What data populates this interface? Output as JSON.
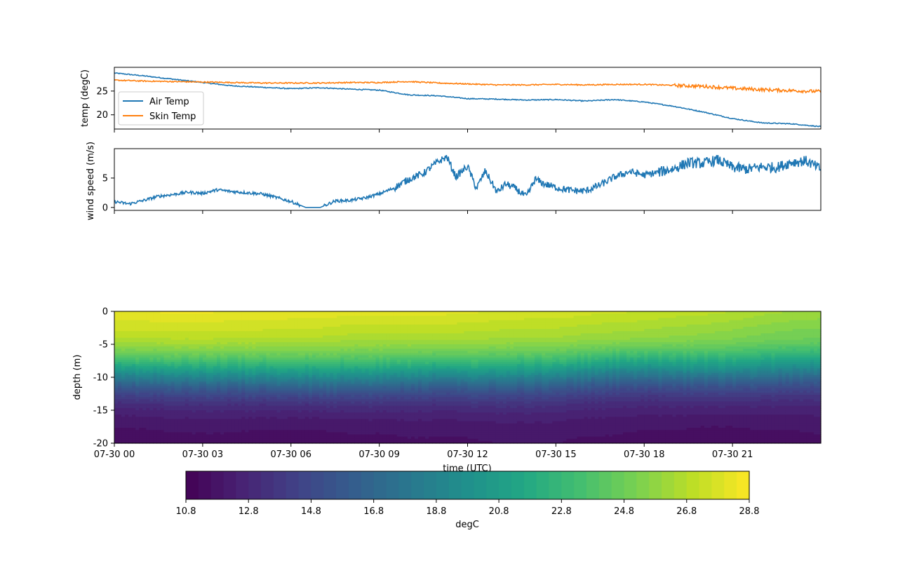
{
  "chart_data": [
    {
      "type": "line",
      "ylabel": "temp (degC)",
      "ylim": [
        17,
        30
      ],
      "x_range_hours": [
        0,
        24
      ],
      "yticks": [
        20,
        25
      ],
      "legend": {
        "placement": "lower-left"
      },
      "series": [
        {
          "name": "Air Temp",
          "color": "#1f77b4",
          "hours": [
            0,
            1,
            2,
            3,
            4,
            5,
            6,
            7,
            8,
            9,
            10,
            11,
            12,
            13,
            14,
            15,
            16,
            17,
            18,
            19,
            20,
            21,
            22,
            23,
            24
          ],
          "values": [
            28.8,
            28.2,
            27.5,
            26.8,
            26.1,
            25.8,
            25.5,
            25.7,
            25.4,
            25.2,
            24.2,
            24.0,
            23.4,
            23.3,
            23.1,
            23.2,
            22.9,
            23.2,
            22.7,
            21.8,
            20.6,
            19.2,
            18.3,
            18.1,
            17.5
          ]
        },
        {
          "name": "Skin Temp",
          "color": "#ff7f0e",
          "hours": [
            0,
            1,
            2,
            3,
            4,
            5,
            6,
            7,
            8,
            9,
            10,
            11,
            12,
            13,
            14,
            15,
            16,
            17,
            18,
            19,
            20,
            21,
            22,
            23,
            24
          ],
          "values": [
            27.3,
            27.1,
            27.0,
            26.9,
            26.8,
            26.7,
            26.7,
            26.7,
            26.8,
            26.8,
            27.0,
            26.7,
            26.5,
            26.3,
            26.3,
            26.4,
            26.3,
            26.4,
            26.4,
            26.2,
            26.0,
            25.6,
            25.3,
            25.1,
            24.9
          ]
        }
      ]
    },
    {
      "type": "line",
      "ylabel": "wind speed (m/s)",
      "ylim": [
        -0.5,
        10
      ],
      "x_range_hours": [
        0,
        24
      ],
      "yticks": [
        0,
        5
      ],
      "series": [
        {
          "color": "#1f77b4",
          "hours": [
            0,
            0.5,
            1,
            1.5,
            2,
            2.5,
            3,
            3.5,
            4,
            4.5,
            5,
            5.5,
            6,
            6.5,
            7,
            7.5,
            8,
            8.5,
            9,
            9.5,
            10,
            10.5,
            11,
            11.3,
            11.6,
            12,
            12.3,
            12.6,
            13,
            13.3,
            13.6,
            14,
            14.3,
            14.6,
            15,
            15.5,
            16,
            16.5,
            17,
            17.5,
            18,
            18.5,
            19,
            19.5,
            20,
            20.5,
            21,
            21.5,
            22,
            22.5,
            23,
            23.5,
            24
          ],
          "values": [
            1.0,
            0.6,
            1.2,
            1.9,
            2.2,
            2.6,
            2.4,
            3.0,
            2.7,
            2.5,
            2.3,
            1.7,
            1.0,
            0.0,
            0.0,
            1.1,
            1.2,
            1.6,
            2.3,
            3.3,
            4.8,
            5.8,
            7.8,
            8.6,
            5.2,
            7.0,
            3.2,
            6.2,
            2.6,
            4.0,
            3.3,
            1.8,
            4.8,
            4.0,
            3.4,
            2.9,
            2.8,
            3.8,
            5.2,
            6.1,
            5.5,
            6.0,
            6.6,
            7.6,
            7.5,
            8.1,
            6.8,
            6.5,
            6.9,
            6.8,
            7.7,
            7.9,
            6.5
          ]
        }
      ]
    },
    {
      "type": "heatmap",
      "xlabel": "time (UTC)",
      "ylabel": "depth (m)",
      "ylim": [
        -20,
        0
      ],
      "yticks": [
        0,
        -5,
        -10,
        -15,
        -20
      ],
      "x_range_hours": [
        0,
        24
      ],
      "xtick_labels": [
        "07-30 00",
        "07-30 03",
        "07-30 06",
        "07-30 09",
        "07-30 12",
        "07-30 15",
        "07-30 18",
        "07-30 21"
      ],
      "colorscale": "viridis",
      "vmin": 10.8,
      "vmax": 28.8,
      "surface_temp_by_hour": [
        28.3,
        28.3,
        28.4,
        28.4,
        28.3,
        28.3,
        28.2,
        28.2,
        28.0,
        28.0,
        28.0,
        28.0,
        27.9,
        27.8,
        27.7,
        27.7,
        27.5,
        27.4,
        27.3,
        27.1,
        27.0,
        26.8,
        26.5,
        26.3,
        26.2
      ],
      "thermocline_depth_by_hour": [
        9.0,
        9.2,
        9.3,
        9.5,
        9.5,
        9.6,
        9.8,
        9.8,
        9.8,
        9.6,
        9.4,
        9.3,
        9.5,
        9.5,
        9.4,
        9.2,
        8.8,
        8.4,
        8.3,
        8.6,
        8.9,
        8.8,
        8.6,
        8.2,
        8.0
      ],
      "bottom_temp_by_hour": [
        11.2,
        11.2,
        11.3,
        11.3,
        11.3,
        11.2,
        11.2,
        11.2,
        11.3,
        11.3,
        11.4,
        11.4,
        11.4,
        11.5,
        11.5,
        11.5,
        11.4,
        11.4,
        11.3,
        11.3,
        11.2,
        11.2,
        11.3,
        11.3,
        11.4
      ]
    }
  ],
  "colorbar": {
    "label": "degC",
    "tick_labels": [
      "10.8",
      "12.8",
      "14.8",
      "16.8",
      "18.8",
      "20.8",
      "22.8",
      "24.8",
      "26.8",
      "28.8"
    ],
    "vmin": 10.8,
    "vmax": 28.8
  }
}
